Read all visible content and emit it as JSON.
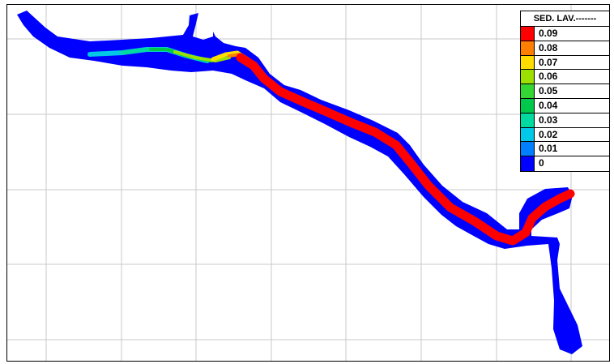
{
  "legend": {
    "title": "SED. LAV.-------",
    "entries": [
      {
        "label": "0.09",
        "color": "#ff0000"
      },
      {
        "label": "0.08",
        "color": "#ff7f00"
      },
      {
        "label": "0.07",
        "color": "#ffdd00"
      },
      {
        "label": "0.06",
        "color": "#9be000"
      },
      {
        "label": "0.05",
        "color": "#33d633"
      },
      {
        "label": "0.04",
        "color": "#00c84b"
      },
      {
        "label": "0.03",
        "color": "#00d9a0"
      },
      {
        "label": "0.02",
        "color": "#00c8e6"
      },
      {
        "label": "0.01",
        "color": "#007fff"
      },
      {
        "label": "0",
        "color": "#0000ff"
      }
    ]
  },
  "map": {
    "grid_color": "#c8c8c8",
    "water_color": "#0000ff"
  }
}
